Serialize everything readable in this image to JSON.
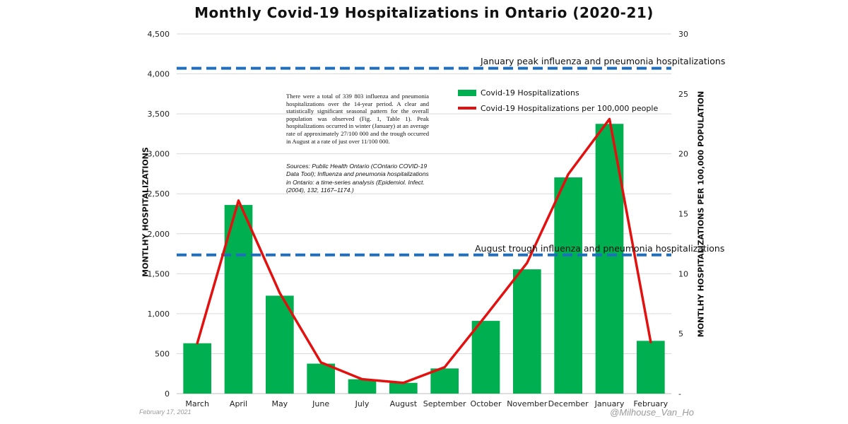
{
  "chart_data": {
    "type": "bar",
    "title": "Monthly Covid-19 Hospitalizations in Ontario (2020-21)",
    "ylabel": "MONTLHY HOSPITALIZATIONS",
    "y2label": "MONTLHY HOSPITALIZATIONS PER 100,000 POPULATION",
    "categories": [
      "March",
      "April",
      "May",
      "June",
      "July",
      "August",
      "September",
      "October",
      "November",
      "December",
      "January",
      "February"
    ],
    "series": [
      {
        "name": "Covid-19 Hospitalizations",
        "type": "bar",
        "axis": "left",
        "color": "#00b050",
        "values": [
          630,
          2360,
          1225,
          375,
          180,
          135,
          315,
          910,
          1555,
          2705,
          3375,
          660
        ]
      },
      {
        "name": "Covid-19 Hospitalizations per 100,000 people",
        "type": "line",
        "axis": "right",
        "color": "#e31010",
        "values": [
          4.2,
          16.1,
          8.4,
          2.6,
          1.2,
          0.9,
          2.2,
          6.5,
          10.9,
          18.3,
          22.9,
          4.3
        ]
      }
    ],
    "ylim": [
      0,
      4500
    ],
    "y2lim": [
      0,
      30
    ],
    "yticks": [
      "0",
      "500",
      "1,000",
      "1,500",
      "2,000",
      "2,500",
      "3,000",
      "3,500",
      "4,000",
      "4,500"
    ],
    "y2ticks": [
      "-",
      "5",
      "10",
      "15",
      "20",
      "25",
      "30"
    ],
    "reference_lines": [
      {
        "label": "January peak influenza and pneumonia hospitalizations",
        "value": 4070,
        "color": "#1f6fc0"
      },
      {
        "label": "August trough influenza and pneumonia hospitalizations",
        "value": 1735,
        "color": "#1f6fc0"
      }
    ],
    "legend_position": "top-right",
    "grid": "horizontal"
  },
  "annotation": {
    "note": "There were a total of 339 803 influenza and pneumonia hospitalizations over the 14-year period. A clear and statistically significant seasonal pattern for the overall population was observed (Fig. 1, Table 1). Peak hospitalizations occurred in winter (January) at an average rate of approximately 27/100 000 and the trough occurred in August at a rate of just over 11/100 000.",
    "sources": "Sources: Public Health Ontario (COntario COVID-19 Data Tool); Influenza and pneumonia hospitalizations in Ontario: a time-series analysis (Epidemiol. Infect. (2004), 132, 1167–1174.)"
  },
  "footer": {
    "date": "February 17, 2021",
    "handle": "@Milhouse_Van_Ho"
  }
}
